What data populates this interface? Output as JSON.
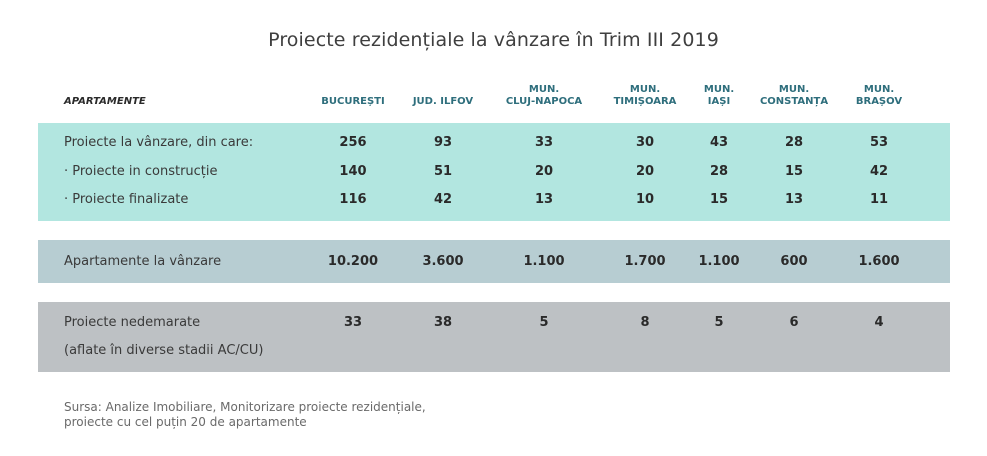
{
  "title": "Proiecte rezidențiale la vânzare în Trim III 2019",
  "header": {
    "row_label": "APARTAMENTE",
    "columns": [
      {
        "line1": "",
        "line2": "BUCUREȘTI"
      },
      {
        "line1": "",
        "line2": "JUD. ILFOV"
      },
      {
        "line1": "MUN.",
        "line2": "CLUJ-NAPOCA"
      },
      {
        "line1": "MUN.",
        "line2": "TIMIȘOARA"
      },
      {
        "line1": "MUN.",
        "line2": "IAȘI"
      },
      {
        "line1": "MUN.",
        "line2": "CONSTANȚA"
      },
      {
        "line1": "MUN.",
        "line2": "BRAȘOV"
      }
    ]
  },
  "rows": [
    {
      "label": "Proiecte la vânzare, din care:",
      "values": [
        "256",
        "93",
        "33",
        "30",
        "43",
        "28",
        "53"
      ]
    },
    {
      "label": "· Proiecte in construcție",
      "values": [
        "140",
        "51",
        "20",
        "20",
        "28",
        "15",
        "42"
      ]
    },
    {
      "label": "· Proiecte finalizate",
      "values": [
        "116",
        "42",
        "13",
        "10",
        "15",
        "13",
        "11"
      ]
    },
    {
      "label": "Apartamente la vânzare",
      "values": [
        "10.200",
        "3.600",
        "1.100",
        "1.700",
        "1.100",
        "600",
        "1.600"
      ]
    },
    {
      "label": "Proiecte nedemarate",
      "sublabel": "(aflate în diverse stadii AC/CU)",
      "values": [
        "33",
        "38",
        "5",
        "8",
        "5",
        "6",
        "4"
      ]
    }
  ],
  "source": {
    "line1": "Sursa: Analize Imobiliare, Monitorizare proiecte rezidențiale,",
    "line2": "proiecte cu cel puțin 20 de apartamente"
  },
  "colors": {
    "band_teal": "#b2e6e0",
    "band_blue_grey": "#b7cdd2",
    "band_grey": "#bdc1c4",
    "header_text": "#2e6e7c"
  }
}
